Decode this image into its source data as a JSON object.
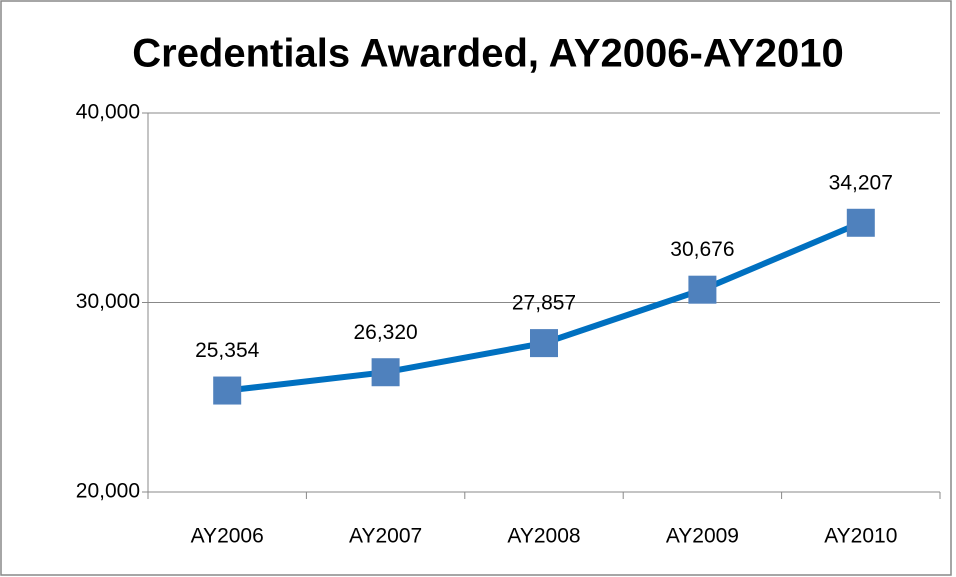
{
  "chart_data": {
    "type": "line",
    "title": "Credentials Awarded, AY2006-AY2010",
    "categories": [
      "AY2006",
      "AY2007",
      "AY2008",
      "AY2009",
      "AY2010"
    ],
    "series": [
      {
        "name": "Credentials Awarded",
        "color": "#0070c0",
        "marker_color": "#4f81bd",
        "values": [
          25354,
          26320,
          27857,
          30676,
          34207
        ],
        "value_labels": [
          "25,354",
          "26,320",
          "27,857",
          "30,676",
          "34,207"
        ]
      }
    ],
    "ylim": [
      20000,
      40000
    ],
    "yticks": [
      {
        "value": 20000,
        "label": "20,000"
      },
      {
        "value": 30000,
        "label": "30,000"
      },
      {
        "value": 40000,
        "label": "40,000"
      }
    ],
    "grid": true
  }
}
